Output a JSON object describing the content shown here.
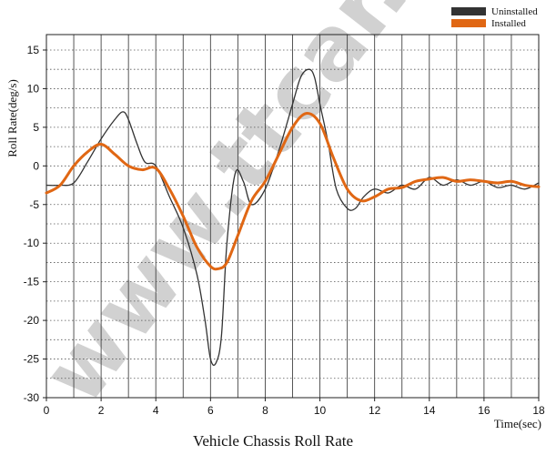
{
  "chart_data": {
    "type": "line",
    "title": "Vehicle Chassis Roll Rate",
    "xlabel": "Time(sec)",
    "ylabel": "Roll Rate(deg/s)",
    "xlim": [
      0,
      18
    ],
    "ylim": [
      -30,
      17
    ],
    "xticks": [
      0,
      2,
      4,
      6,
      8,
      10,
      12,
      14,
      16,
      18
    ],
    "yticks": [
      15,
      10,
      5,
      0,
      -5,
      -10,
      -15,
      -20,
      -25,
      -30
    ],
    "grid": "dotted horizontal at 2.5 deg/s, solid vertical at 1 s",
    "legend_position": "top-right",
    "watermark": "www.ttcar.ir",
    "series": [
      {
        "name": "Uninstalled",
        "color": "#333333",
        "x": [
          0,
          0.5,
          1.0,
          1.5,
          2.0,
          2.5,
          2.8,
          3.0,
          3.3,
          3.6,
          4.0,
          4.5,
          5.0,
          5.5,
          5.8,
          6.0,
          6.2,
          6.4,
          6.6,
          6.9,
          7.2,
          7.5,
          8.0,
          8.5,
          9.0,
          9.3,
          9.6,
          9.8,
          10.0,
          10.3,
          10.6,
          11.0,
          11.3,
          11.6,
          12.0,
          12.5,
          13.0,
          13.5,
          14.0,
          14.5,
          15.0,
          15.5,
          16.0,
          16.5,
          17.0,
          17.5,
          18.0
        ],
        "y": [
          -2.5,
          -2.5,
          -2.2,
          0.5,
          3.5,
          6.0,
          7.0,
          6.0,
          3.0,
          0.5,
          0.0,
          -4.0,
          -8.0,
          -14.0,
          -20.0,
          -25.0,
          -25.5,
          -22.0,
          -10.0,
          -1.0,
          -2.0,
          -5.0,
          -3.0,
          2.0,
          8.0,
          11.5,
          12.5,
          11.5,
          8.0,
          3.0,
          -3.0,
          -5.5,
          -5.5,
          -4.0,
          -3.0,
          -3.5,
          -2.5,
          -3.0,
          -1.5,
          -2.5,
          -1.8,
          -2.5,
          -2.0,
          -2.8,
          -2.5,
          -3.0,
          -2.2
        ]
      },
      {
        "name": "Installed",
        "color": "#e06714",
        "x": [
          0,
          0.5,
          1.0,
          1.5,
          2.0,
          2.5,
          3.0,
          3.5,
          4.0,
          4.5,
          5.0,
          5.5,
          6.0,
          6.3,
          6.6,
          7.0,
          7.5,
          8.0,
          8.5,
          9.0,
          9.5,
          10.0,
          10.5,
          11.0,
          11.5,
          12.0,
          12.5,
          13.0,
          13.5,
          14.0,
          14.5,
          15.0,
          15.5,
          16.0,
          16.5,
          17.0,
          17.5,
          18.0
        ],
        "y": [
          -3.5,
          -2.5,
          0.0,
          1.8,
          2.8,
          1.5,
          0.0,
          -0.5,
          -0.3,
          -3.0,
          -6.5,
          -10.5,
          -13.0,
          -13.3,
          -12.5,
          -9.0,
          -4.5,
          -2.0,
          1.5,
          5.0,
          6.8,
          5.5,
          1.0,
          -3.0,
          -4.5,
          -4.0,
          -3.0,
          -2.8,
          -2.0,
          -1.7,
          -1.5,
          -2.0,
          -1.8,
          -2.0,
          -2.2,
          -2.0,
          -2.5,
          -2.7
        ]
      }
    ]
  }
}
